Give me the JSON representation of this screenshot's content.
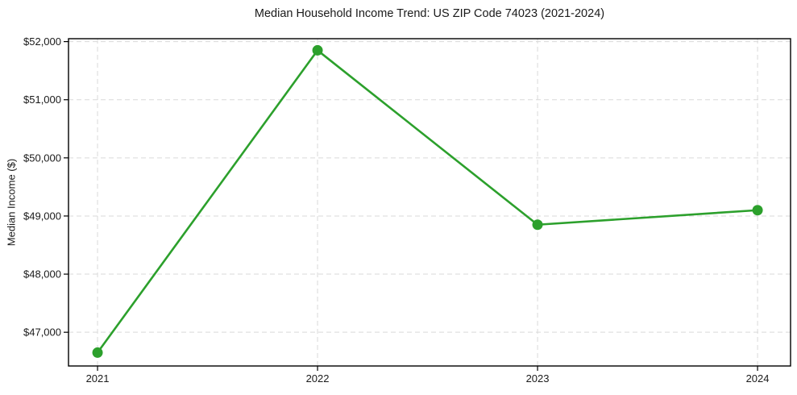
{
  "figure": {
    "title": "Median Household Income Trend: US ZIP Code 74023 (2021-2024)",
    "ylabel": "Median Income ($)"
  },
  "chart_data": {
    "type": "line",
    "title": "Median Household Income Trend: US ZIP Code 74023 (2021-2024)",
    "xlabel": "",
    "ylabel": "Median Income ($)",
    "x": [
      2021,
      2022,
      2023,
      2024
    ],
    "x_tick_labels": [
      "2021",
      "2022",
      "2023",
      "2024"
    ],
    "series": [
      {
        "name": "median_household_income",
        "color": "#2ca02c",
        "values": [
          46650,
          51850,
          48850,
          49100
        ]
      }
    ],
    "y_ticks": [
      47000,
      48000,
      49000,
      50000,
      51000,
      52000
    ],
    "y_tick_labels": [
      "$47,000",
      "$48,000",
      "$49,000",
      "$50,000",
      "$51,000",
      "$52,000"
    ],
    "xlim": [
      2020.868,
      2024.15
    ],
    "ylim": [
      46420,
      52050
    ],
    "grid": true,
    "grid_style": "dashed",
    "legend": "none",
    "colors": {
      "line": "#2ca02c",
      "marker": "#2ca02c",
      "grid": "#d9d9d9",
      "axis_border": "#000000",
      "text": "#1a1a1a",
      "background": "#ffffff"
    },
    "marker_radius": 6.5,
    "line_width": 2.6
  }
}
